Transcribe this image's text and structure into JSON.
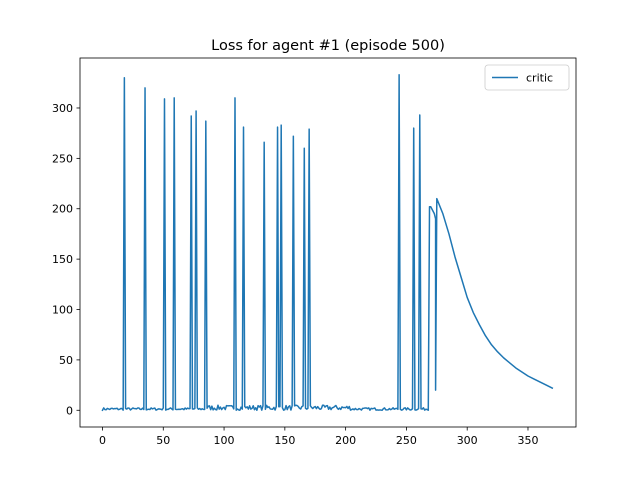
{
  "chart_data": {
    "type": "line",
    "title": "Loss for agent #1 (episode 500)",
    "xlabel": "",
    "ylabel": "",
    "xlim": [
      -18.5,
      389.5
    ],
    "ylim": [
      -16.6,
      349.6
    ],
    "x_ticks": [
      0,
      50,
      100,
      150,
      200,
      250,
      300,
      350
    ],
    "y_ticks": [
      0,
      50,
      100,
      150,
      200,
      250,
      300
    ],
    "x_tick_labels": [
      "0",
      "50",
      "100",
      "150",
      "200",
      "250",
      "300",
      "350"
    ],
    "y_tick_labels": [
      "0",
      "50",
      "100",
      "150",
      "200",
      "250",
      "300"
    ],
    "grid": false,
    "legend": {
      "position": "top-right",
      "entries": [
        "critic"
      ]
    },
    "series": [
      {
        "name": "critic",
        "color": "#1f77b4",
        "noise_segment": {
          "x_start": 0,
          "x_end": 269,
          "typical_low": 0,
          "typical_high": 5
        },
        "spikes": [
          {
            "x": 18,
            "y": 330
          },
          {
            "x": 35,
            "y": 320
          },
          {
            "x": 51,
            "y": 309
          },
          {
            "x": 59,
            "y": 310
          },
          {
            "x": 73,
            "y": 292
          },
          {
            "x": 77,
            "y": 297
          },
          {
            "x": 85,
            "y": 287
          },
          {
            "x": 109,
            "y": 310
          },
          {
            "x": 116,
            "y": 281
          },
          {
            "x": 133,
            "y": 266
          },
          {
            "x": 144,
            "y": 281
          },
          {
            "x": 147,
            "y": 283
          },
          {
            "x": 157,
            "y": 272
          },
          {
            "x": 166,
            "y": 260
          },
          {
            "x": 170,
            "y": 279
          },
          {
            "x": 244,
            "y": 333
          },
          {
            "x": 256,
            "y": 280
          },
          {
            "x": 261,
            "y": 293
          }
        ],
        "tail_points": [
          [
            268,
            1
          ],
          [
            269,
            202
          ],
          [
            270,
            202
          ],
          [
            273,
            195
          ],
          [
            274,
            190
          ],
          [
            274,
            20
          ],
          [
            275,
            210
          ],
          [
            280,
            195
          ],
          [
            285,
            175
          ],
          [
            290,
            152
          ],
          [
            295,
            132
          ],
          [
            300,
            112
          ],
          [
            305,
            97
          ],
          [
            310,
            85
          ],
          [
            315,
            74
          ],
          [
            320,
            65
          ],
          [
            325,
            58
          ],
          [
            330,
            52
          ],
          [
            335,
            47
          ],
          [
            340,
            42
          ],
          [
            345,
            38
          ],
          [
            350,
            34
          ],
          [
            355,
            31
          ],
          [
            360,
            28
          ],
          [
            365,
            25
          ],
          [
            370,
            22
          ]
        ]
      }
    ]
  }
}
